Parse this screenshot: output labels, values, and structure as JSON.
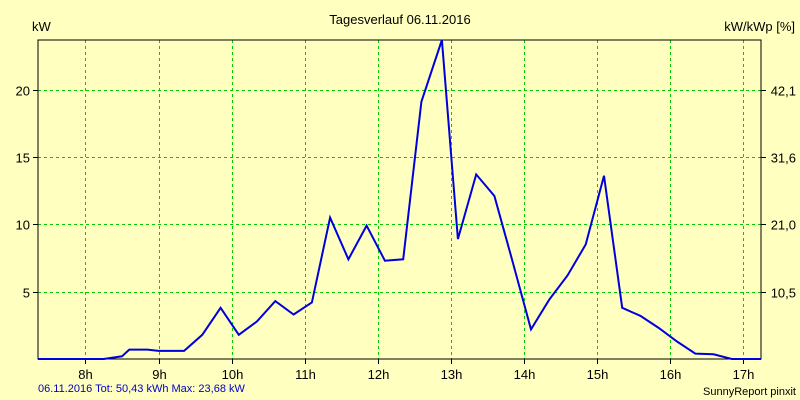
{
  "colors": {
    "background": "#ffffc0",
    "grid": "#00cc00",
    "line": "#0000dd",
    "footer_left": "#0000cc"
  },
  "chart_data": {
    "type": "line",
    "title": "Tagesverlauf 06.11.2016",
    "ylabel_left": "kW",
    "ylabel_right": "kW/kWp [%]",
    "grid": true,
    "xlim": [
      7.35,
      17.25
    ],
    "ylim": [
      0,
      23.68
    ],
    "x_ticks": [
      8,
      9,
      10,
      11,
      12,
      13,
      14,
      15,
      16,
      17
    ],
    "x_tick_labels": [
      "8h",
      "9h",
      "10h",
      "11h",
      "12h",
      "13h",
      "14h",
      "15h",
      "16h",
      "17h"
    ],
    "y_ticks": [
      5,
      10,
      15,
      20
    ],
    "y_tick_labels": [
      "5",
      "10",
      "15",
      "20"
    ],
    "y_right_tick_labels": [
      "10,5",
      "21,0",
      "31,6",
      "42,1"
    ],
    "series": [
      {
        "values": [
          [
            7.35,
            0
          ],
          [
            8.25,
            0
          ],
          [
            8.5,
            0.2
          ],
          [
            8.6,
            0.7
          ],
          [
            8.85,
            0.7
          ],
          [
            9.0,
            0.6
          ],
          [
            9.35,
            0.6
          ],
          [
            9.6,
            1.8
          ],
          [
            9.85,
            3.8
          ],
          [
            10.1,
            1.8
          ],
          [
            10.35,
            2.8
          ],
          [
            10.6,
            4.3
          ],
          [
            10.85,
            3.3
          ],
          [
            11.1,
            4.2
          ],
          [
            11.35,
            10.5
          ],
          [
            11.6,
            7.4
          ],
          [
            11.85,
            9.9
          ],
          [
            12.1,
            7.3
          ],
          [
            12.35,
            7.4
          ],
          [
            12.6,
            19.1
          ],
          [
            12.88,
            23.68
          ],
          [
            13.1,
            8.9
          ],
          [
            13.35,
            13.7
          ],
          [
            13.6,
            12.1
          ],
          [
            13.85,
            7.2
          ],
          [
            14.1,
            2.2
          ],
          [
            14.35,
            4.4
          ],
          [
            14.6,
            6.2
          ],
          [
            14.85,
            8.5
          ],
          [
            15.1,
            13.6
          ],
          [
            15.35,
            3.8
          ],
          [
            15.6,
            3.2
          ],
          [
            15.85,
            2.3
          ],
          [
            16.1,
            1.3
          ],
          [
            16.35,
            0.4
          ],
          [
            16.6,
            0.35
          ],
          [
            16.85,
            0
          ],
          [
            17.25,
            0
          ]
        ]
      }
    ]
  },
  "footer": {
    "left": "06.11.2016 Tot: 50,43 kWh Max: 23,68 kW",
    "right": "SunnyReport pinxit"
  }
}
